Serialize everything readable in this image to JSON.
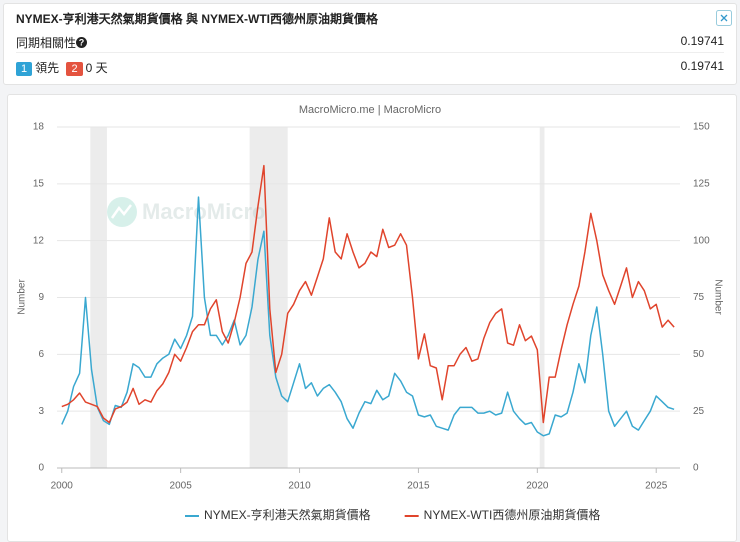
{
  "header": {
    "title": "NYMEX-亨利港天然氣期貨價格 與 NYMEX-WTI西德州原油期貨價格",
    "correlation_label": "同期相關性",
    "correlation_value": "0.19741",
    "lead_badge": "1",
    "lead_label": "領先",
    "lag_badge": "2",
    "lag_label": "0 天",
    "lead_value": "0.19741"
  },
  "chart_data": {
    "type": "line",
    "subtitle": "MacroMicro.me | MacroMicro",
    "watermark": "MacroMicro",
    "y_label": "Number",
    "y2_label": "Number",
    "xlim": [
      1999.8,
      2026.0
    ],
    "xticks": [
      2000,
      2005,
      2010,
      2015,
      2020,
      2025
    ],
    "ylim": [
      0,
      18
    ],
    "yticks": [
      0,
      3,
      6,
      9,
      12,
      15,
      18
    ],
    "y2lim": [
      0,
      150
    ],
    "y2ticks": [
      0,
      25,
      50,
      75,
      100,
      125,
      150
    ],
    "grid": true,
    "shaded_ranges": [
      [
        2001.2,
        2001.9
      ],
      [
        2007.9,
        2009.5
      ],
      [
        2020.1,
        2020.3
      ]
    ],
    "x": [
      2000.0,
      2000.25,
      2000.5,
      2000.75,
      2001.0,
      2001.25,
      2001.5,
      2001.75,
      2002.0,
      2002.25,
      2002.5,
      2002.75,
      2003.0,
      2003.25,
      2003.5,
      2003.75,
      2004.0,
      2004.25,
      2004.5,
      2004.75,
      2005.0,
      2005.25,
      2005.5,
      2005.75,
      2006.0,
      2006.25,
      2006.5,
      2006.75,
      2007.0,
      2007.25,
      2007.5,
      2007.75,
      2008.0,
      2008.25,
      2008.5,
      2008.75,
      2009.0,
      2009.25,
      2009.5,
      2009.75,
      2010.0,
      2010.25,
      2010.5,
      2010.75,
      2011.0,
      2011.25,
      2011.5,
      2011.75,
      2012.0,
      2012.25,
      2012.5,
      2012.75,
      2013.0,
      2013.25,
      2013.5,
      2013.75,
      2014.0,
      2014.25,
      2014.5,
      2014.75,
      2015.0,
      2015.25,
      2015.5,
      2015.75,
      2016.0,
      2016.25,
      2016.5,
      2016.75,
      2017.0,
      2017.25,
      2017.5,
      2017.75,
      2018.0,
      2018.25,
      2018.5,
      2018.75,
      2019.0,
      2019.25,
      2019.5,
      2019.75,
      2020.0,
      2020.25,
      2020.5,
      2020.75,
      2021.0,
      2021.25,
      2021.5,
      2021.75,
      2022.0,
      2022.25,
      2022.5,
      2022.75,
      2023.0,
      2023.25,
      2023.5,
      2023.75,
      2024.0,
      2024.25,
      2024.5,
      2024.75,
      2025.0,
      2025.25,
      2025.5,
      2025.75
    ],
    "series": [
      {
        "name": "NYMEX-亨利港天然氣期貨價格",
        "color": "#3aa8d0",
        "axis": "y",
        "values": [
          2.3,
          3.0,
          4.3,
          5.0,
          9.0,
          5.2,
          3.2,
          2.5,
          2.3,
          3.3,
          3.2,
          4.0,
          5.5,
          5.3,
          4.8,
          4.8,
          5.5,
          5.8,
          6.0,
          6.8,
          6.3,
          7.0,
          8.0,
          14.3,
          9.0,
          7.0,
          7.0,
          6.5,
          7.0,
          7.8,
          6.5,
          7.0,
          8.5,
          11.0,
          12.5,
          7.0,
          4.8,
          3.8,
          3.5,
          4.5,
          5.5,
          4.2,
          4.5,
          3.8,
          4.2,
          4.4,
          4.0,
          3.5,
          2.6,
          2.1,
          2.9,
          3.5,
          3.4,
          4.1,
          3.6,
          3.8,
          5.0,
          4.6,
          4.0,
          3.8,
          2.8,
          2.7,
          2.8,
          2.2,
          2.1,
          2.0,
          2.8,
          3.2,
          3.2,
          3.2,
          2.9,
          2.9,
          3.0,
          2.8,
          2.9,
          4.0,
          3.0,
          2.6,
          2.3,
          2.4,
          1.9,
          1.7,
          1.8,
          2.8,
          2.7,
          2.9,
          4.0,
          5.5,
          4.5,
          7.0,
          8.5,
          6.0,
          3.0,
          2.2,
          2.6,
          3.0,
          2.2,
          2.0,
          2.5,
          3.0,
          3.8,
          3.5,
          3.2,
          3.1
        ]
      },
      {
        "name": "NYMEX-WTI西德州原油期貨價格",
        "color": "#e0442c",
        "axis": "y2",
        "values": [
          27,
          28,
          30,
          33,
          29,
          28,
          27,
          22,
          20,
          26,
          27,
          29,
          35,
          28,
          30,
          29,
          34,
          37,
          42,
          50,
          47,
          53,
          60,
          63,
          63,
          70,
          74,
          60,
          55,
          64,
          75,
          90,
          95,
          115,
          133,
          70,
          42,
          50,
          68,
          72,
          78,
          82,
          76,
          84,
          92,
          110,
          95,
          92,
          103,
          95,
          88,
          90,
          95,
          93,
          105,
          97,
          98,
          103,
          98,
          75,
          48,
          59,
          45,
          44,
          30,
          45,
          45,
          50,
          53,
          47,
          48,
          57,
          64,
          68,
          70,
          55,
          54,
          63,
          56,
          58,
          52,
          20,
          40,
          40,
          52,
          63,
          72,
          80,
          95,
          112,
          100,
          85,
          78,
          72,
          80,
          88,
          75,
          82,
          78,
          70,
          72,
          62,
          65,
          62
        ]
      }
    ]
  }
}
